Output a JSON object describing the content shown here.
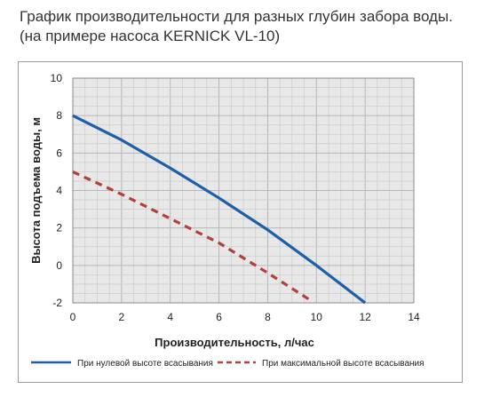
{
  "title_lines": [
    "График производительности для разных глубин забора воды.",
    "(на примере насоса KERNICK VL-10)"
  ],
  "chart_data": {
    "type": "line",
    "title": "График производительности для разных глубин забора воды. (на примере насоса KERNICK VL-10)",
    "xlabel": "Производительность, л/час",
    "ylabel": "Высота подъема воды, м",
    "xlim": [
      0,
      14
    ],
    "ylim": [
      -2,
      10
    ],
    "xticks": [
      0,
      2,
      4,
      6,
      8,
      10,
      12,
      14
    ],
    "yticks": [
      -2,
      0,
      2,
      4,
      6,
      8,
      10
    ],
    "grid": true,
    "legend_position": "bottom",
    "series": [
      {
        "name": "При нулевой высоте всасывания",
        "color": "#1f5fa8",
        "style": "solid",
        "x": [
          0,
          2,
          4,
          6,
          8,
          10,
          12
        ],
        "y": [
          8.0,
          6.7,
          5.2,
          3.6,
          1.9,
          0.0,
          -2.0
        ]
      },
      {
        "name": "При максимальной высоте всасывания",
        "color": "#b0413e",
        "style": "dashed",
        "x": [
          0,
          2,
          4,
          6,
          8,
          9.8
        ],
        "y": [
          5.0,
          3.8,
          2.5,
          1.2,
          -0.4,
          -1.9
        ]
      }
    ]
  }
}
